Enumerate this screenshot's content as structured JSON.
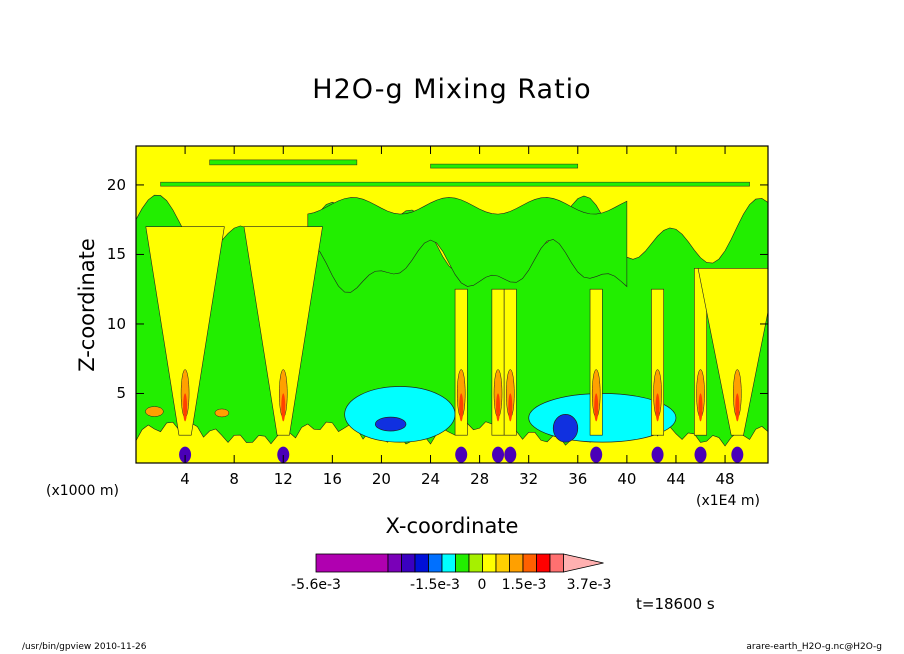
{
  "chart_data": {
    "type": "heatmap",
    "title": "H2O-g Mixing Ratio",
    "xlabel": "X-coordinate",
    "ylabel": "Z-coordinate",
    "x_scale_note_left": "(x1000 m)",
    "x_scale_note_right": "(x1E4 m)",
    "xlim": [
      0,
      51.5
    ],
    "ylim": [
      0,
      22.8
    ],
    "x_ticks": [
      4,
      8,
      12,
      16,
      20,
      24,
      28,
      32,
      36,
      40,
      44,
      48
    ],
    "y_ticks": [
      5,
      10,
      15,
      20
    ],
    "colorbar": {
      "labels": [
        "-5.6e-3",
        "-1.5e-3",
        "0",
        "1.5e-3",
        "3.7e-3"
      ],
      "colors": [
        "#b000b0",
        "#b000b0",
        "#b000b0",
        "#7a00b8",
        "#3a00c0",
        "#0010d8",
        "#0070ff",
        "#00ffff",
        "#22ee00",
        "#a6f000",
        "#ffff00",
        "#ffd000",
        "#ffa000",
        "#ff6000",
        "#ff0000",
        "#ff7070",
        "#ffb0b0"
      ]
    },
    "regions": [
      {
        "level": "yellow",
        "x": [
          0,
          51.5
        ],
        "y": [
          17.5,
          22.8
        ]
      },
      {
        "level": "cyan",
        "x": [
          17,
          26
        ],
        "y": [
          1.5,
          5.5
        ]
      },
      {
        "level": "cyan",
        "x": [
          32,
          44
        ],
        "y": [
          1.5,
          5
        ]
      },
      {
        "level": "blue",
        "x": [
          19.5,
          22
        ],
        "y": [
          2.3,
          3.3
        ]
      },
      {
        "level": "blue",
        "x": [
          34,
          36
        ],
        "y": [
          1.5,
          3.5
        ]
      }
    ],
    "plumes_x": [
      4,
      12,
      26.5,
      29.5,
      30.5,
      37.5,
      42.5,
      46,
      49
    ]
  },
  "annotation": {
    "time": "t=18600 s"
  },
  "footer": {
    "left": "/usr/bin/gpview  2010-11-26",
    "right": "arare-earth_H2O-g.nc@H2O-g"
  }
}
